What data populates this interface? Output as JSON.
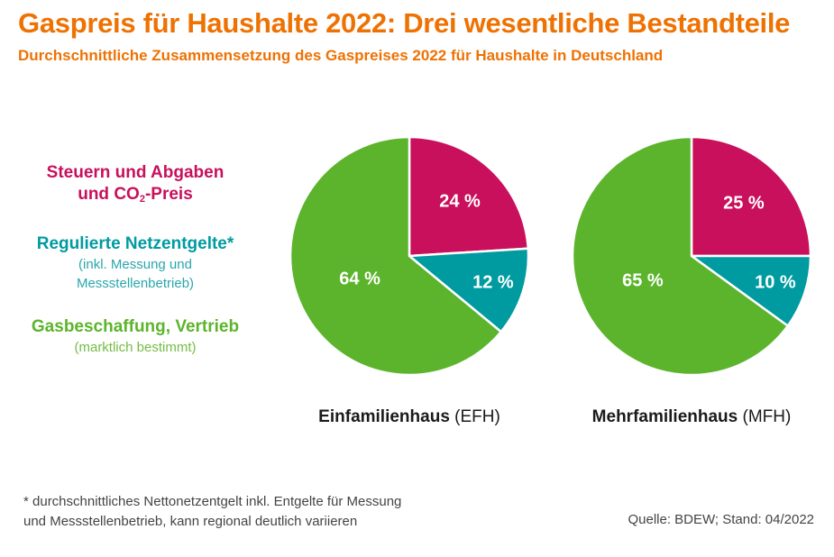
{
  "title": "Gaspreis für Haushalte 2022: Drei wesentliche Bestandteile",
  "subtitle": "Durchschnittliche Zusammensetzung des Gaspreises 2022 für Haushalte in Deutschland",
  "legend": {
    "steuern": {
      "line1": "Steuern und Abgaben",
      "line2_prefix": "und CO",
      "line2_sub": "2",
      "line2_suffix": "-Preis",
      "color": "#c8105c"
    },
    "netz": {
      "main": "Regulierte Netzentgelte*",
      "note1": "(inkl. Messung und",
      "note2": "Messstellenbetrieb)",
      "color": "#009ba0"
    },
    "gas": {
      "main": "Gasbeschaffung, Vertrieb",
      "note": "(marktlich bestimmt)",
      "color": "#5cb42c"
    }
  },
  "chart_data": [
    {
      "type": "pie",
      "caption_name": "Einfamilienhaus",
      "caption_abbr": " (EFH)",
      "slices": [
        {
          "category": "Steuern und Abgaben und CO2-Preis",
          "value": 24,
          "label": "24 %",
          "color": "#c8105c"
        },
        {
          "category": "Regulierte Netzentgelte",
          "value": 12,
          "label": "12 %",
          "color": "#009ba0"
        },
        {
          "category": "Gasbeschaffung, Vertrieb",
          "value": 64,
          "label": "64 %",
          "color": "#5cb42c"
        }
      ]
    },
    {
      "type": "pie",
      "caption_name": "Mehrfamilienhaus",
      "caption_abbr": " (MFH)",
      "slices": [
        {
          "category": "Steuern und Abgaben und CO2-Preis",
          "value": 25,
          "label": "25 %",
          "color": "#c8105c"
        },
        {
          "category": "Regulierte Netzentgelte",
          "value": 10,
          "label": "10 %",
          "color": "#009ba0"
        },
        {
          "category": "Gasbeschaffung, Vertrieb",
          "value": 65,
          "label": "65 %",
          "color": "#5cb42c"
        }
      ]
    }
  ],
  "footnote": {
    "line1": "* durchschnittliches Nettonetzentgelt inkl. Entgelte für Messung",
    "line2": "und Messstellenbetrieb, kann regional deutlich variieren"
  },
  "source": "Quelle: BDEW; Stand: 04/2022"
}
